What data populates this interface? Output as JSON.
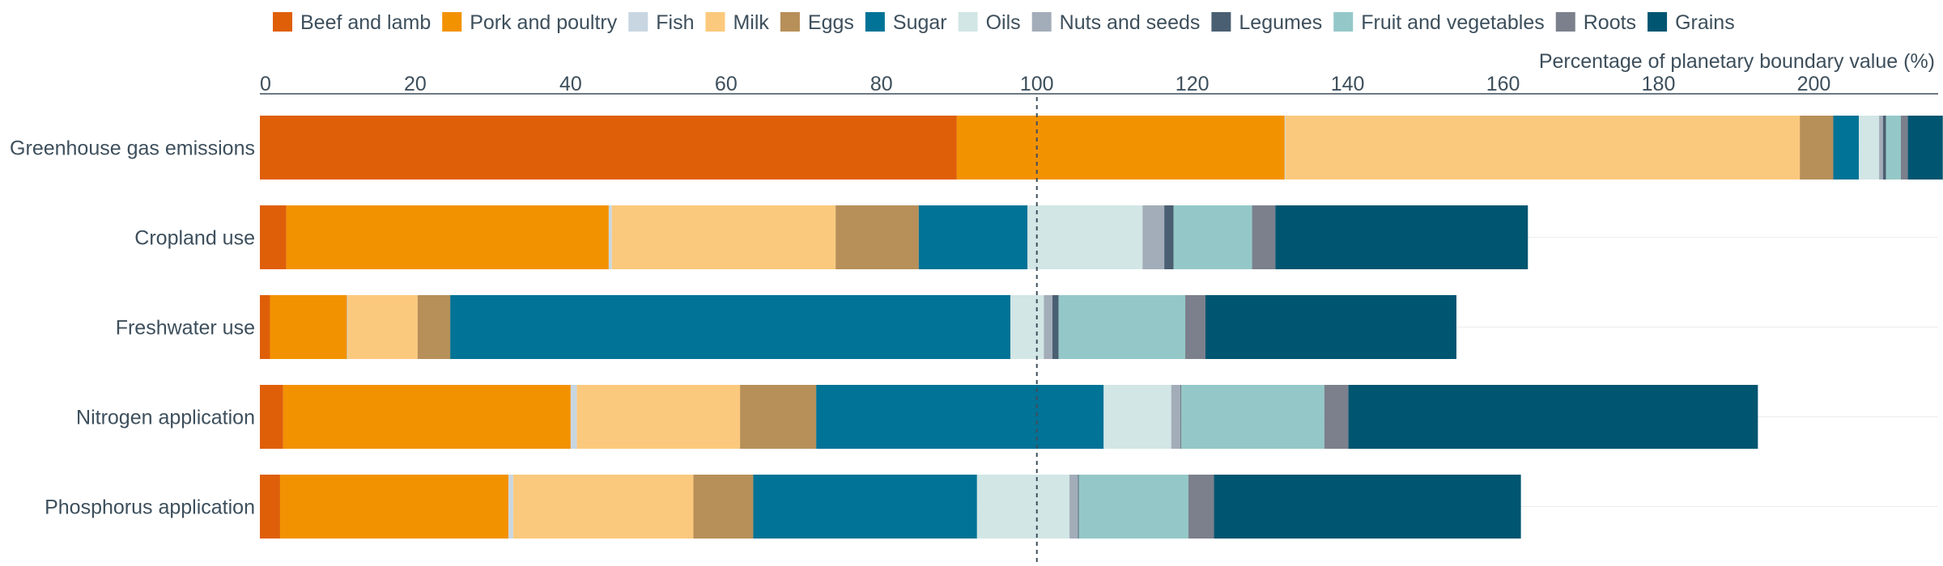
{
  "chart_data": {
    "type": "bar",
    "orientation": "horizontal",
    "stacked": true,
    "xlabel": "Percentage of planetary boundary value (%)",
    "xlim": [
      0,
      216
    ],
    "xticks": [
      0,
      20,
      40,
      60,
      80,
      100,
      120,
      140,
      160,
      180,
      200
    ],
    "reference_line": 100,
    "legend_position": "top",
    "categories": [
      "Greenhouse gas emissions",
      "Cropland use",
      "Freshwater use",
      "Nitrogen application",
      "Phosphorus application"
    ],
    "series": [
      {
        "name": "Beef and lamb",
        "color": "#df5f09",
        "values": [
          89.7,
          3.4,
          1.3,
          3.0,
          2.6
        ]
      },
      {
        "name": "Pork and poultry",
        "color": "#f39200",
        "values": [
          42.2,
          41.5,
          9.9,
          37.0,
          29.4
        ]
      },
      {
        "name": "Fish",
        "color": "#c8d6e2",
        "values": [
          0.1,
          0.4,
          0.1,
          0.8,
          0.6
        ]
      },
      {
        "name": "Milk",
        "color": "#fbc97d",
        "values": [
          66.2,
          28.8,
          9.0,
          21.0,
          23.2
        ]
      },
      {
        "name": "Eggs",
        "color": "#b78f58",
        "values": [
          4.3,
          10.7,
          4.2,
          9.8,
          7.7
        ]
      },
      {
        "name": "Sugar",
        "color": "#007396",
        "values": [
          3.3,
          14.0,
          72.1,
          37.0,
          28.8
        ]
      },
      {
        "name": "Oils",
        "color": "#d1e6e5",
        "values": [
          2.6,
          14.8,
          4.3,
          8.7,
          11.9
        ]
      },
      {
        "name": "Nuts and seeds",
        "color": "#a3adb9",
        "values": [
          0.5,
          2.8,
          1.1,
          1.2,
          1.1
        ]
      },
      {
        "name": "Legumes",
        "color": "#4a5f72",
        "values": [
          0.4,
          1.2,
          0.8,
          0.1,
          0.1
        ]
      },
      {
        "name": "Fruit and vegetables",
        "color": "#94c8c8",
        "values": [
          1.9,
          10.1,
          16.3,
          18.4,
          14.1
        ]
      },
      {
        "name": "Roots",
        "color": "#7b808c",
        "values": [
          0.9,
          3.0,
          2.6,
          3.1,
          3.3
        ]
      },
      {
        "name": "Grains",
        "color": "#005570",
        "values": [
          4.5,
          32.5,
          32.3,
          52.7,
          39.5
        ]
      }
    ]
  }
}
